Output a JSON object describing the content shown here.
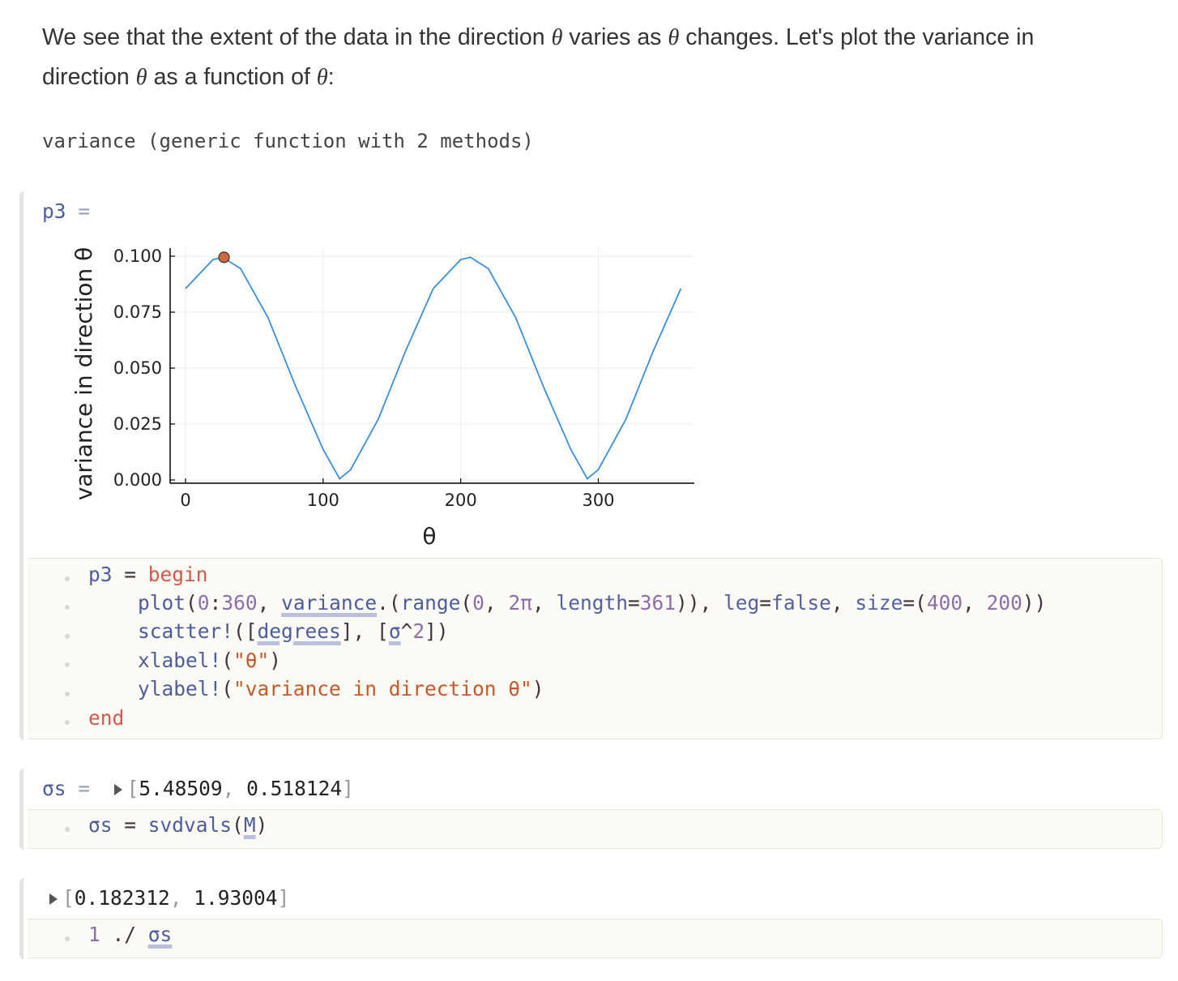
{
  "prose": {
    "text_a": "We see that the extent of the data in the direction ",
    "theta1": "θ",
    "text_b": " varies as ",
    "theta2": "θ",
    "text_c": " changes. Let's plot the variance in",
    "text_d": "direction ",
    "theta3": "θ",
    "text_e": " as a function of ",
    "theta4": "θ",
    "text_f": ":"
  },
  "variance_output": "variance (generic function with 2 methods)",
  "cell_p3": {
    "var": "p3",
    "eq": "=",
    "code": {
      "l1_var": "p3",
      "l1_eq": " = ",
      "l1_kw": "begin",
      "l2_plot": "plot",
      "l2_a": "(",
      "l2_n1": "0",
      "l2_c1": ":",
      "l2_n2": "360",
      "l2_c2": ", ",
      "l2_variance": "variance",
      "l2_c3": ".(",
      "l2_range": "range",
      "l2_c4": "(",
      "l2_n3": "0",
      "l2_c5": ", ",
      "l2_n4": "2π",
      "l2_c6": ", ",
      "l2_length": "length",
      "l2_c7": "=",
      "l2_n5": "361",
      "l2_c8": ")), ",
      "l2_leg": "leg",
      "l2_c9": "=",
      "l2_false": "false",
      "l2_c10": ", ",
      "l2_size": "size",
      "l2_c11": "=(",
      "l2_n6": "400",
      "l2_c12": ", ",
      "l2_n7": "200",
      "l2_c13": "))",
      "l3_scatter": "scatter!",
      "l3_a": "([",
      "l3_degrees": "degrees",
      "l3_b": "], [",
      "l3_sigma": "σ",
      "l3_c": "^",
      "l3_n": "2",
      "l3_d": "])",
      "l4_xlabel": "xlabel!",
      "l4_a": "(",
      "l4_str": "\"θ\"",
      "l4_b": ")",
      "l5_ylabel": "ylabel!",
      "l5_a": "(",
      "l5_str": "\"variance in direction θ\"",
      "l5_b": ")",
      "l6_kw": "end"
    }
  },
  "chart_data": {
    "type": "line",
    "xlabel": "θ",
    "ylabel": "variance in direction θ",
    "xlim": [
      0,
      360
    ],
    "ylim": [
      0,
      0.1
    ],
    "xticks": [
      0,
      100,
      200,
      300
    ],
    "xtick_labels": [
      "0",
      "100",
      "200",
      "300"
    ],
    "yticks": [
      0,
      0.025,
      0.05,
      0.075,
      0.1
    ],
    "ytick_labels": [
      "0.000",
      "0.025",
      "0.050",
      "0.075",
      "0.100"
    ],
    "grid": true,
    "legend": false,
    "series": [
      {
        "kind": "line",
        "color": "#3a8fdd",
        "x": [
          0,
          20,
          27,
          40,
          60,
          80,
          100,
          112,
          120,
          140,
          160,
          180,
          200,
          207,
          220,
          240,
          260,
          280,
          292,
          300,
          320,
          340,
          360
        ],
        "y": [
          0.0855,
          0.0985,
          0.0995,
          0.0945,
          0.0725,
          0.0418,
          0.0137,
          0.0005,
          0.0046,
          0.0271,
          0.0577,
          0.0855,
          0.0985,
          0.0995,
          0.0945,
          0.0725,
          0.0418,
          0.0137,
          0.0005,
          0.0046,
          0.0271,
          0.0577,
          0.0855
        ]
      },
      {
        "kind": "scatter",
        "color": "#d0683d",
        "x": [
          28
        ],
        "y": [
          0.0995
        ]
      }
    ]
  },
  "cell_sigmas": {
    "var": "σs",
    "eq": "=",
    "open": "[",
    "v1": "5.48509",
    "comma": ", ",
    "v2": "0.518124",
    "close": "]",
    "code_var": "σs",
    "code_eq": " = ",
    "code_fn": "svdvals",
    "code_a": "(",
    "code_m": "M",
    "code_b": ")"
  },
  "cell_inv": {
    "open": "[",
    "v1": "0.182312",
    "comma": ", ",
    "v2": "1.93004",
    "close": "]",
    "code_n": "1",
    "code_op": " ./ ",
    "code_var": "σs"
  }
}
